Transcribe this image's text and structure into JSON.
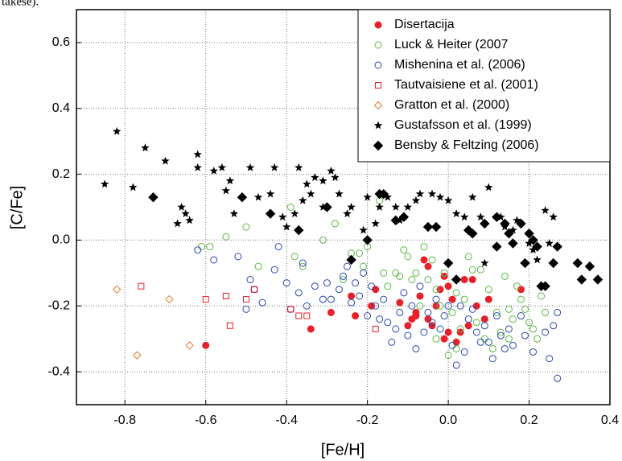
{
  "fragment": "takese).",
  "chart_data": {
    "type": "scatter",
    "xlabel": "[Fe/H]",
    "ylabel": "[C/Fe]",
    "xlim": [
      -0.92,
      0.4
    ],
    "ylim": [
      -0.5,
      0.7
    ],
    "xticks": [
      -0.8,
      -0.6,
      -0.4,
      -0.2,
      {
        "value": 0,
        "label": "0.0"
      },
      0.2,
      0.4
    ],
    "yticks": [
      -0.4,
      -0.2,
      {
        "value": 0,
        "label": "0.0"
      },
      0.2,
      0.4,
      0.6
    ],
    "grid": true,
    "legend": "upper right",
    "series": [
      {
        "name": "Disertacija",
        "color": "#e8202a",
        "marker": "circle-filled",
        "x": [
          -0.6,
          -0.34,
          -0.29,
          -0.24,
          -0.23,
          -0.19,
          -0.18,
          -0.12,
          -0.1,
          -0.09,
          -0.08,
          -0.07,
          -0.06,
          -0.05,
          -0.05,
          -0.04,
          -0.03,
          -0.02,
          -0.01,
          0.0,
          0.0,
          0.01,
          0.02,
          0.03,
          0.04,
          0.05,
          0.06,
          0.07,
          0.09,
          0.1,
          0.18,
          -0.08,
          -0.01
        ],
        "y": [
          -0.32,
          -0.27,
          -0.22,
          -0.17,
          -0.23,
          -0.2,
          -0.15,
          -0.19,
          -0.26,
          -0.24,
          -0.22,
          -0.17,
          -0.06,
          -0.08,
          -0.24,
          -0.26,
          -0.2,
          -0.15,
          -0.11,
          -0.14,
          -0.28,
          -0.18,
          -0.31,
          -0.28,
          -0.12,
          -0.26,
          -0.12,
          -0.2,
          -0.24,
          -0.18,
          -0.15,
          -0.23,
          -0.3
        ]
      },
      {
        "name": "Luck & Heiter (2007",
        "color": "#5cb844",
        "marker": "circle-open",
        "x": [
          -0.61,
          -0.59,
          -0.55,
          -0.5,
          -0.47,
          -0.39,
          -0.38,
          -0.36,
          -0.31,
          -0.28,
          -0.26,
          -0.24,
          -0.22,
          -0.21,
          -0.2,
          -0.17,
          -0.15,
          -0.13,
          -0.12,
          -0.11,
          -0.1,
          -0.09,
          -0.08,
          -0.07,
          -0.06,
          -0.05,
          -0.04,
          -0.03,
          -0.02,
          -0.01,
          0.0,
          0.0,
          0.01,
          0.02,
          0.03,
          0.04,
          0.05,
          0.06,
          0.07,
          0.08,
          0.09,
          0.1,
          0.11,
          0.12,
          0.13,
          0.14,
          0.15,
          0.16,
          0.17,
          0.18,
          0.19,
          0.2,
          0.21,
          0.22,
          0.23,
          0.24,
          0.15,
          -0.03,
          0.02,
          -0.16
        ],
        "y": [
          -0.02,
          -0.02,
          0.01,
          0.04,
          -0.08,
          0.1,
          -0.05,
          -0.08,
          0.0,
          0.05,
          -0.12,
          -0.04,
          -0.04,
          -0.08,
          -0.02,
          0.12,
          -0.14,
          -0.1,
          -0.11,
          -0.03,
          -0.05,
          -0.12,
          -0.1,
          -0.2,
          -0.02,
          -0.12,
          -0.06,
          -0.15,
          -0.2,
          -0.1,
          -0.07,
          -0.35,
          -0.22,
          -0.16,
          -0.27,
          -0.18,
          -0.05,
          -0.09,
          -0.25,
          -0.09,
          -0.3,
          -0.15,
          -0.33,
          -0.22,
          -0.28,
          -0.11,
          -0.3,
          -0.24,
          -0.14,
          -0.18,
          -0.21,
          -0.25,
          -0.27,
          -0.3,
          -0.17,
          -0.22,
          -0.21,
          -0.3,
          -0.33,
          -0.1
        ]
      },
      {
        "name": "Mishenina et al. (2006)",
        "color": "#2a46b0",
        "marker": "circle-open",
        "x": [
          -0.62,
          -0.58,
          -0.52,
          -0.5,
          -0.49,
          -0.48,
          -0.42,
          -0.4,
          -0.39,
          -0.37,
          -0.36,
          -0.35,
          -0.33,
          -0.31,
          -0.3,
          -0.29,
          -0.27,
          -0.26,
          -0.25,
          -0.24,
          -0.23,
          -0.22,
          -0.21,
          -0.2,
          -0.19,
          -0.18,
          -0.17,
          -0.16,
          -0.15,
          -0.14,
          -0.13,
          -0.12,
          -0.11,
          -0.1,
          -0.09,
          -0.08,
          -0.07,
          -0.06,
          -0.05,
          -0.04,
          -0.03,
          -0.02,
          -0.01,
          0.0,
          0.01,
          0.02,
          0.03,
          0.04,
          0.05,
          0.06,
          0.07,
          0.08,
          0.09,
          0.1,
          0.11,
          0.12,
          0.13,
          0.14,
          0.15,
          0.16,
          0.18,
          0.19,
          0.21,
          0.24,
          0.25,
          0.26,
          0.27,
          0.27,
          -0.46,
          -0.43
        ],
        "y": [
          -0.03,
          -0.06,
          -0.05,
          -0.21,
          -0.12,
          -0.15,
          -0.02,
          -0.13,
          -0.21,
          -0.16,
          -0.07,
          -0.2,
          -0.14,
          -0.18,
          -0.13,
          -0.18,
          -0.15,
          -0.11,
          -0.08,
          -0.19,
          -0.13,
          -0.17,
          -0.1,
          -0.23,
          -0.14,
          -0.2,
          -0.24,
          -0.18,
          -0.25,
          -0.31,
          -0.27,
          -0.22,
          -0.16,
          -0.29,
          -0.2,
          -0.33,
          -0.14,
          -0.28,
          -0.22,
          -0.25,
          -0.18,
          -0.27,
          -0.23,
          -0.2,
          -0.32,
          -0.38,
          -0.2,
          -0.34,
          -0.24,
          -0.21,
          -0.28,
          -0.31,
          -0.26,
          -0.31,
          -0.36,
          -0.23,
          -0.29,
          -0.33,
          -0.27,
          -0.32,
          -0.23,
          -0.29,
          -0.34,
          -0.28,
          -0.36,
          -0.26,
          -0.22,
          -0.42,
          -0.19,
          -0.09
        ]
      },
      {
        "name": "Tautvaisiene et al. (2001)",
        "color": "#e8202a",
        "marker": "square-open",
        "x": [
          -0.76,
          -0.6,
          -0.55,
          -0.54,
          -0.5,
          -0.48,
          -0.37,
          -0.35,
          -0.39,
          -0.18
        ],
        "y": [
          -0.14,
          -0.18,
          -0.17,
          -0.26,
          -0.18,
          -0.15,
          -0.23,
          -0.23,
          -0.21,
          -0.27
        ]
      },
      {
        "name": "Gratton et al. (2000)",
        "color": "#e8782a",
        "marker": "diamond-open",
        "x": [
          -0.82,
          -0.77,
          -0.69,
          -0.64
        ],
        "y": [
          -0.15,
          -0.35,
          -0.18,
          -0.32
        ]
      },
      {
        "name": "Gustafsson et al. (1999)",
        "color": "#000000",
        "marker": "star",
        "x": [
          -0.85,
          -0.82,
          -0.78,
          -0.75,
          -0.7,
          -0.67,
          -0.66,
          -0.65,
          -0.64,
          -0.62,
          -0.62,
          -0.58,
          -0.56,
          -0.54,
          -0.55,
          -0.53,
          -0.49,
          -0.47,
          -0.44,
          -0.43,
          -0.41,
          -0.4,
          -0.38,
          -0.37,
          -0.36,
          -0.35,
          -0.34,
          -0.33,
          -0.31,
          -0.31,
          -0.29,
          -0.28,
          -0.27,
          -0.25,
          -0.24,
          -0.21,
          -0.2,
          -0.18,
          -0.17,
          -0.15,
          -0.13,
          -0.12,
          -0.1,
          -0.08,
          -0.07,
          -0.04,
          -0.02,
          0.0,
          0.02,
          0.04,
          0.06,
          0.08,
          0.1,
          0.13,
          0.14,
          0.16,
          0.17,
          0.2,
          0.21,
          0.22,
          0.24,
          0.25,
          0.26,
          0.09
        ],
        "y": [
          0.17,
          0.33,
          0.16,
          0.28,
          0.24,
          0.05,
          0.1,
          0.08,
          0.06,
          0.26,
          0.22,
          0.21,
          0.22,
          0.18,
          0.15,
          0.08,
          0.22,
          0.13,
          0.14,
          0.22,
          0.07,
          0.04,
          0.08,
          0.22,
          0.12,
          0.17,
          0.14,
          0.19,
          0.1,
          0.18,
          0.21,
          0.19,
          0.14,
          0.08,
          0.1,
          0.03,
          0.13,
          0.05,
          0.1,
          0.13,
          0.1,
          0.06,
          0.1,
          0.12,
          0.14,
          0.14,
          0.13,
          0.12,
          0.08,
          0.07,
          0.13,
          0.07,
          0.16,
          0.07,
          0.04,
          0.03,
          0.06,
          -0.01,
          -0.03,
          -0.06,
          0.09,
          -0.01,
          0.07,
          -0.07
        ]
      },
      {
        "name": "Bensby & Feltzing (2006)",
        "color": "#000000",
        "marker": "diamond-filled",
        "x": [
          -0.73,
          -0.51,
          -0.44,
          -0.37,
          -0.3,
          -0.24,
          -0.2,
          -0.17,
          -0.16,
          -0.13,
          -0.11,
          -0.05,
          -0.03,
          0.0,
          0.02,
          0.05,
          0.06,
          0.09,
          0.12,
          0.12,
          0.14,
          0.15,
          0.16,
          0.18,
          0.19,
          0.2,
          0.21,
          0.22,
          0.23,
          0.26,
          0.27,
          0.32,
          0.33,
          0.35,
          0.37,
          0.24
        ],
        "y": [
          0.13,
          0.13,
          0.08,
          0.03,
          0.1,
          -0.06,
          0.0,
          0.14,
          0.14,
          0.06,
          0.07,
          0.04,
          0.04,
          -0.07,
          -0.12,
          0.03,
          0.02,
          0.05,
          -0.02,
          0.07,
          0.05,
          0.02,
          -0.01,
          0.05,
          -0.07,
          0.02,
          0.0,
          -0.02,
          -0.14,
          -0.07,
          -0.02,
          -0.07,
          -0.12,
          -0.08,
          -0.12,
          -0.14
        ]
      }
    ]
  }
}
